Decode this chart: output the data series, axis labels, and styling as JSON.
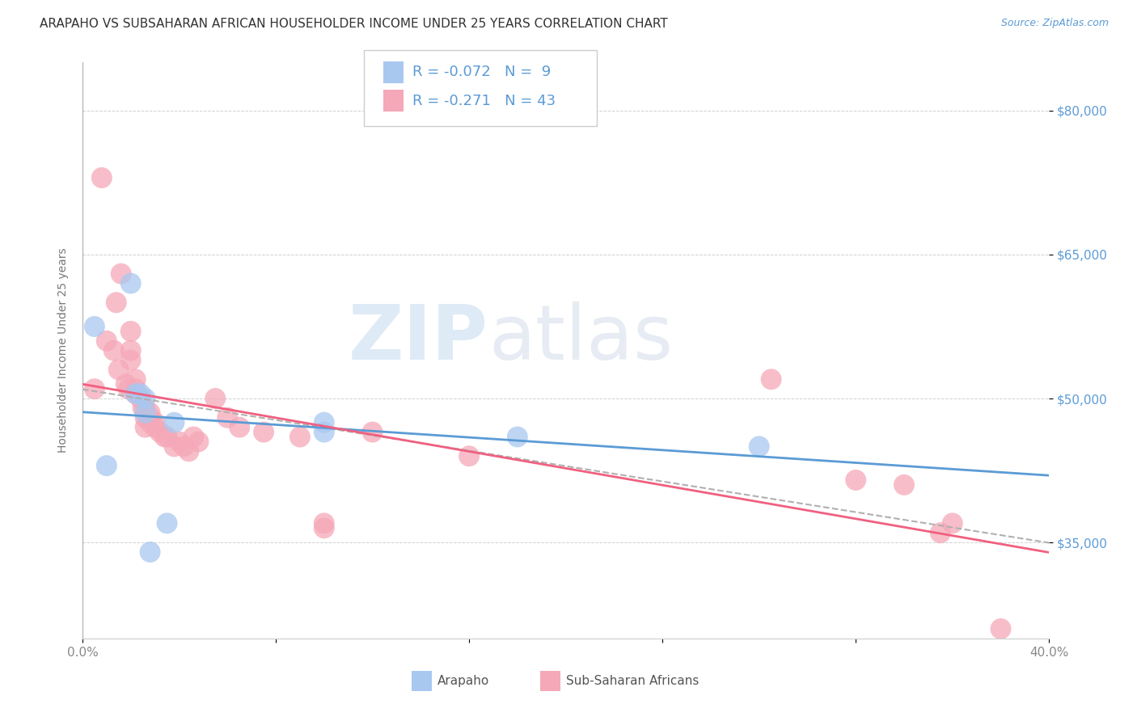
{
  "title": "ARAPAHO VS SUBSAHARAN AFRICAN HOUSEHOLDER INCOME UNDER 25 YEARS CORRELATION CHART",
  "source": "Source: ZipAtlas.com",
  "ylabel": "Householder Income Under 25 years",
  "xlim": [
    0.0,
    0.4
  ],
  "ylim": [
    25000,
    85000
  ],
  "xticks": [
    0.0,
    0.08,
    0.16,
    0.24,
    0.32,
    0.4
  ],
  "xticklabels": [
    "0.0%",
    "",
    "",
    "",
    "",
    "40.0%"
  ],
  "ytick_positions": [
    35000,
    50000,
    65000,
    80000
  ],
  "ytick_labels": [
    "$35,000",
    "$50,000",
    "$65,000",
    "$80,000"
  ],
  "background_color": "#ffffff",
  "grid_color": "#d0d0d0",
  "watermark_zip": "ZIP",
  "watermark_atlas": "atlas",
  "arapaho_color": "#a8c8f0",
  "subsaharan_color": "#f5a8b8",
  "arapaho_edge_color": "#90b8e8",
  "subsaharan_edge_color": "#e898a8",
  "arapaho_line_color": "#5b9bd5",
  "subsaharan_line_color": "#f06080",
  "combined_line_color": "#b0b0b0",
  "legend_text_color": "#5b9bd5",
  "arapaho_points": [
    [
      0.005,
      57500
    ],
    [
      0.01,
      43000
    ],
    [
      0.02,
      62000
    ],
    [
      0.022,
      50500
    ],
    [
      0.024,
      50500
    ],
    [
      0.026,
      50000
    ],
    [
      0.026,
      48500
    ],
    [
      0.028,
      34000
    ],
    [
      0.035,
      37000
    ],
    [
      0.038,
      47500
    ],
    [
      0.1,
      46500
    ],
    [
      0.1,
      47500
    ],
    [
      0.18,
      46000
    ],
    [
      0.28,
      45000
    ]
  ],
  "subsaharan_points": [
    [
      0.005,
      51000
    ],
    [
      0.008,
      73000
    ],
    [
      0.01,
      56000
    ],
    [
      0.013,
      55000
    ],
    [
      0.014,
      60000
    ],
    [
      0.015,
      53000
    ],
    [
      0.016,
      63000
    ],
    [
      0.018,
      51500
    ],
    [
      0.019,
      51000
    ],
    [
      0.02,
      57000
    ],
    [
      0.02,
      55000
    ],
    [
      0.02,
      54000
    ],
    [
      0.022,
      52000
    ],
    [
      0.022,
      51000
    ],
    [
      0.022,
      50500
    ],
    [
      0.024,
      50000
    ],
    [
      0.025,
      49000
    ],
    [
      0.026,
      49000
    ],
    [
      0.026,
      48000
    ],
    [
      0.026,
      47000
    ],
    [
      0.028,
      48500
    ],
    [
      0.028,
      48000
    ],
    [
      0.03,
      47500
    ],
    [
      0.03,
      47000
    ],
    [
      0.032,
      46500
    ],
    [
      0.034,
      46000
    ],
    [
      0.035,
      46000
    ],
    [
      0.038,
      45000
    ],
    [
      0.04,
      45500
    ],
    [
      0.042,
      45000
    ],
    [
      0.044,
      44500
    ],
    [
      0.046,
      46000
    ],
    [
      0.048,
      45500
    ],
    [
      0.055,
      50000
    ],
    [
      0.06,
      48000
    ],
    [
      0.065,
      47000
    ],
    [
      0.075,
      46500
    ],
    [
      0.09,
      46000
    ],
    [
      0.1,
      36500
    ],
    [
      0.1,
      37000
    ],
    [
      0.12,
      46500
    ],
    [
      0.16,
      44000
    ],
    [
      0.285,
      52000
    ],
    [
      0.32,
      41500
    ],
    [
      0.34,
      41000
    ],
    [
      0.355,
      36000
    ],
    [
      0.36,
      37000
    ],
    [
      0.38,
      26000
    ],
    [
      0.028,
      47500
    ]
  ],
  "title_fontsize": 11,
  "source_fontsize": 9,
  "label_fontsize": 10,
  "tick_fontsize": 11,
  "legend_fontsize": 13
}
